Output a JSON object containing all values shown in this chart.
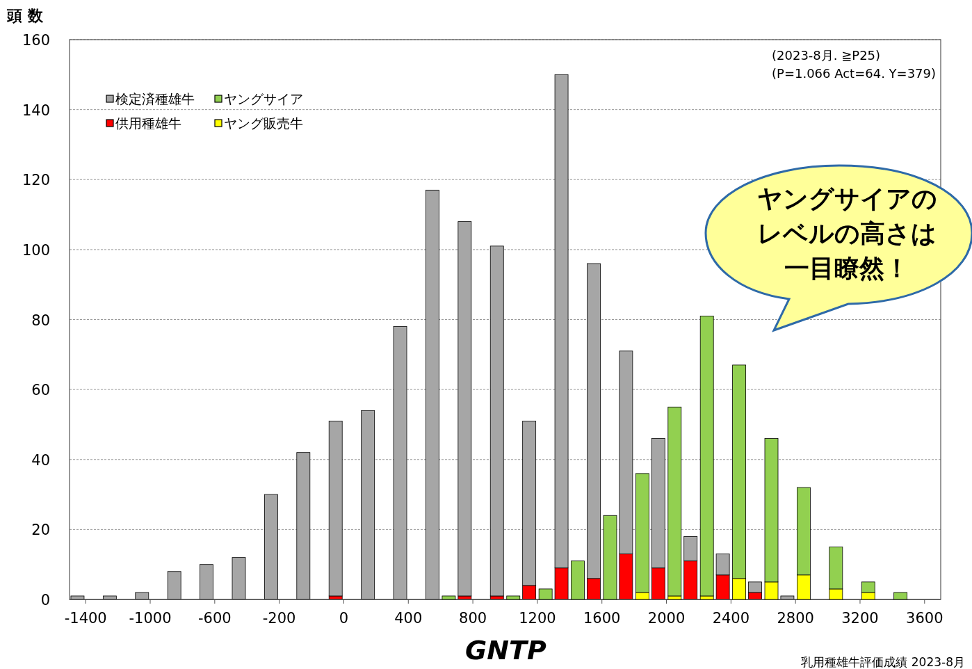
{
  "chart_data": [
    {
      "type": "bar",
      "stacked": true,
      "ylabel": "頭 数",
      "xlabel": "GNTP",
      "categories": [
        "-1400",
        null,
        "-1000",
        null,
        "-600",
        null,
        "-200",
        null,
        "0",
        null,
        "400",
        null,
        "800",
        null,
        "1200",
        null,
        "1600",
        null,
        "2000",
        null,
        "2400",
        null,
        "2800",
        null,
        "3200",
        null,
        "3600"
      ],
      "series": [
        {
          "name": "供用種雄牛",
          "color": "#ff0000",
          "values": [
            0,
            0,
            0,
            0,
            0,
            0,
            0,
            0,
            1,
            0,
            0,
            0,
            1,
            1,
            4,
            9,
            6,
            13,
            9,
            11,
            7,
            2,
            0,
            0,
            0,
            0,
            0
          ]
        },
        {
          "name": "検定済種雄牛",
          "color": "#a6a6a6",
          "values": [
            1,
            1,
            2,
            8,
            10,
            12,
            30,
            42,
            50,
            54,
            78,
            117,
            107,
            100,
            47,
            141,
            90,
            58,
            37,
            7,
            6,
            3,
            1,
            0,
            0,
            0,
            0
          ]
        }
      ],
      "ylim": [
        0,
        160
      ],
      "yticks": [
        0,
        20,
        40,
        60,
        80,
        100,
        120,
        140,
        160
      ],
      "grid": "y",
      "legend": "top left",
      "annotations": [
        "(2023-8月. ≧P25)",
        "(P=1.066 Act=64. Y=379)",
        "ヤングサイアのレベルの高さは一目瞭然！",
        "乳用種雄牛評価成績 2023-8月"
      ]
    },
    {
      "type": "bar",
      "stacked": true,
      "tick_labels": false,
      "categories": [
        "-1400",
        null,
        "-1000",
        null,
        "-600",
        null,
        "-200",
        null,
        "0",
        null,
        "400",
        null,
        "800",
        null,
        "1200",
        null,
        "1600",
        null,
        "2000",
        null,
        "2400",
        null,
        "2800",
        null,
        "3200",
        null,
        "3600"
      ],
      "series": [
        {
          "name": "ヤング販売牛",
          "color": "#ffff00",
          "values": [
            0,
            0,
            0,
            0,
            0,
            0,
            0,
            0,
            0,
            0,
            0,
            0,
            0,
            0,
            0,
            0,
            0,
            2,
            1,
            1,
            6,
            5,
            7,
            3,
            2,
            0,
            0
          ]
        },
        {
          "name": "ヤングサイア",
          "color": "#92d050",
          "values": [
            0,
            0,
            0,
            0,
            0,
            0,
            0,
            0,
            0,
            0,
            0,
            1,
            0,
            1,
            3,
            11,
            24,
            34,
            54,
            80,
            61,
            41,
            25,
            12,
            3,
            2,
            0
          ]
        }
      ],
      "ylim": [
        0,
        160
      ],
      "legend": "top left"
    }
  ]
}
